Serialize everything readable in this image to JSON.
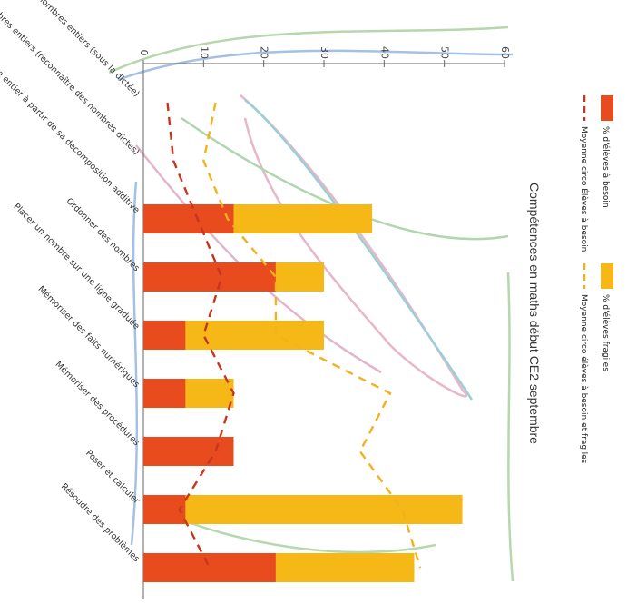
{
  "chart_data": {
    "type": "bar",
    "title": "Compétences en maths début CE2 septembre",
    "categories": [
      "Écrire des nombres entiers (sous la dictée)",
      "Lire des nombres entiers (reconnaître des nombres dictés)",
      "Reconnaître un nombre entier à partir de sa décomposition additive",
      "Ordonner des nombres",
      "Placer un nombre sur une ligne graduée",
      "Mémoriser des faits numériques",
      "Mémoriser des procédures",
      "Poser et calculer",
      "Résoudre des problèmes"
    ],
    "ylim": [
      0,
      60
    ],
    "yticks": [
      "0",
      "10",
      "20",
      "30",
      "40",
      "50",
      "60"
    ],
    "stacked": true,
    "series": [
      {
        "name": "% d'élèves à besoin",
        "kind": "bar",
        "color": "#e84b1e",
        "values": [
          null,
          null,
          15,
          22,
          7,
          7,
          15,
          7,
          22
        ]
      },
      {
        "name": "% d'élèves fragiles",
        "kind": "bar",
        "color": "#f5b817",
        "values": [
          null,
          null,
          23,
          8,
          23,
          8,
          0,
          46,
          23
        ]
      },
      {
        "name": "Moyenne circo Élèves à besoin",
        "kind": "line",
        "color": "#c8351c",
        "values": [
          4,
          5,
          9,
          13,
          10,
          15,
          12,
          6,
          11
        ]
      },
      {
        "name": "Moyenne circo élèves à besoin et fragiles",
        "kind": "line",
        "color": "#f2b21d",
        "values": [
          12,
          10,
          14,
          22,
          22,
          41,
          36,
          43,
          46
        ]
      }
    ],
    "legend_position": "top-right",
    "grid": false
  }
}
